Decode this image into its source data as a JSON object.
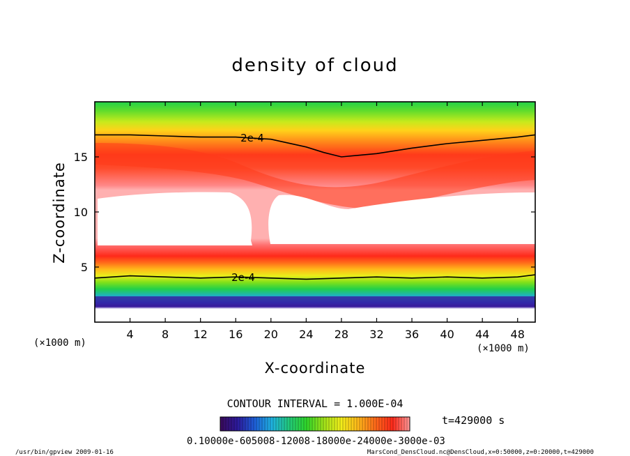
{
  "chart_data": {
    "type": "heatmap",
    "title": "density of cloud",
    "xlabel": "X-coordinate",
    "ylabel": "Z-coordinate",
    "x_unit": "(×1000 m)",
    "z_unit": "(×1000 m)",
    "xlim": [
      0,
      50
    ],
    "ylim": [
      0,
      20
    ],
    "x_ticks": [
      4,
      8,
      12,
      16,
      20,
      24,
      28,
      32,
      36,
      40,
      44,
      48
    ],
    "y_ticks": [
      5,
      10,
      15
    ],
    "contour_label": "2e-4",
    "contour_interval_text": "CONTOUR INTERVAL = 1.000E-04",
    "time_text": "t=429000 s",
    "colorbar_labels_text": "0.10000e-605008-12008-18000e-24000e-3000e-03",
    "colorscale": [
      "#3a0a5a",
      "#2c1a9c",
      "#1e5fd8",
      "#1fb2e0",
      "#22c97a",
      "#2fd62a",
      "#9fe21a",
      "#f2ef1a",
      "#ffb81a",
      "#ff6a1a",
      "#ff2a1a",
      "#ff9999"
    ],
    "contour_2e4_upper": {
      "x": [
        0,
        4,
        8,
        12,
        16,
        20,
        24,
        26,
        28,
        32,
        36,
        40,
        44,
        48,
        50
      ],
      "z": [
        17.0,
        17.0,
        16.9,
        16.8,
        16.8,
        16.6,
        15.9,
        15.4,
        15.0,
        15.3,
        15.8,
        16.2,
        16.5,
        16.8,
        17.0
      ]
    },
    "contour_2e4_lower": {
      "x": [
        0,
        4,
        8,
        12,
        16,
        20,
        24,
        28,
        32,
        36,
        40,
        44,
        48,
        50
      ],
      "z": [
        4.0,
        4.2,
        4.1,
        4.0,
        4.1,
        4.0,
        3.9,
        4.0,
        4.1,
        4.0,
        4.1,
        4.0,
        4.1,
        4.3
      ]
    },
    "clear_region_z": [
      7.0,
      11.8
    ],
    "clear_region_gap_x": [
      17.5,
      19.5
    ]
  },
  "footer": {
    "left": "/usr/bin/gpview  2009-01-16",
    "right": "MarsCond_DensCloud.nc@DensCloud,x=0:50000,z=0:20000,t=429000"
  }
}
